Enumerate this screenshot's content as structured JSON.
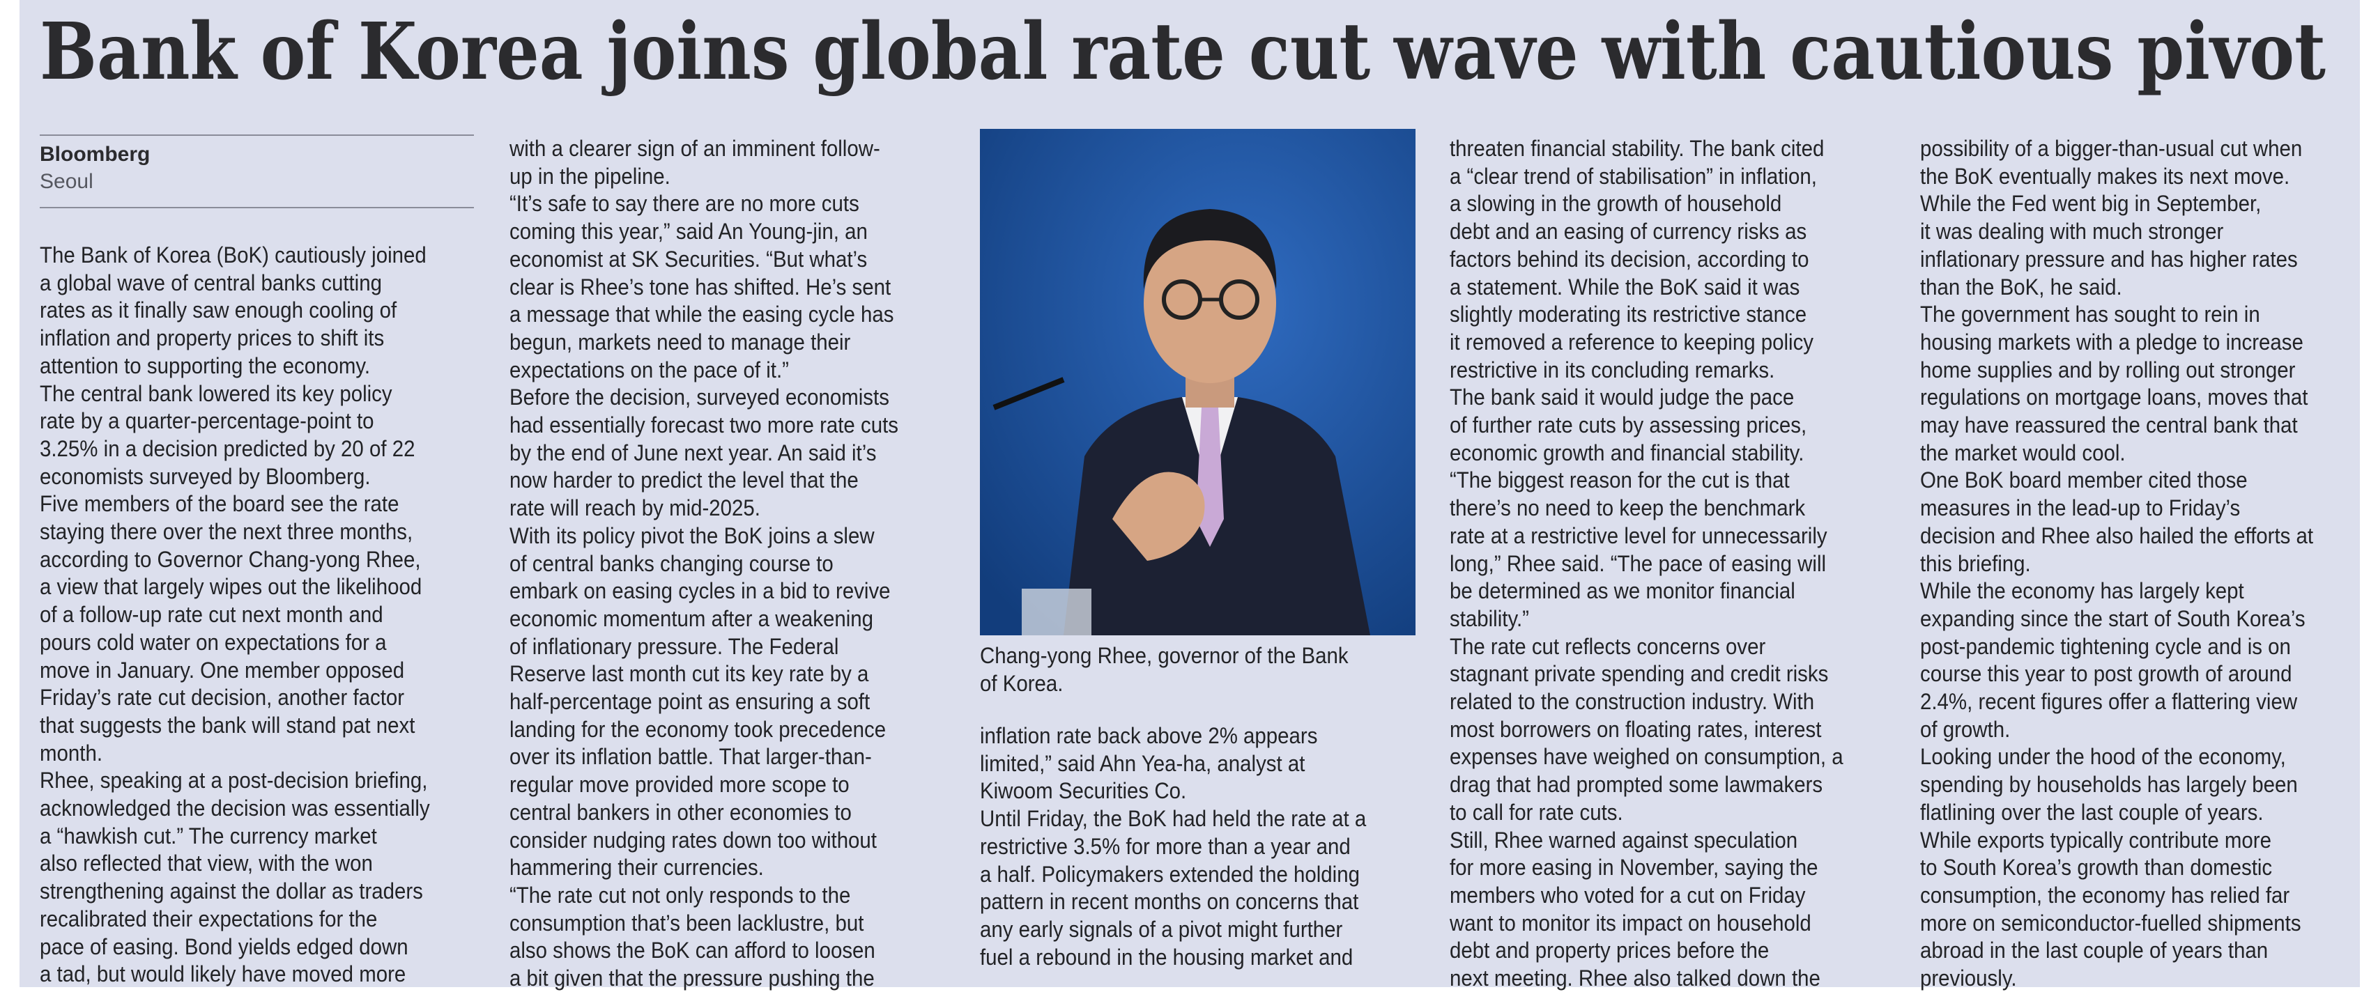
{
  "headline": "Bank of Korea joins global rate cut wave with cautious pivot",
  "byline": {
    "source": "Bloomberg",
    "location": "Seoul"
  },
  "columns": [
    {
      "lines": [
        "The Bank of Korea (BoK) cautiously joined",
        "a global wave of central banks cutting",
        "rates as it finally saw enough cooling of",
        "inflation and property prices to shift its",
        "attention to supporting the economy.",
        "The central bank lowered its key policy",
        "rate by a quarter-percentage-point to",
        "3.25% in a decision predicted by 20 of 22",
        "economists surveyed by Bloomberg.",
        "Five members of the board see the rate",
        "staying there over the next three months,",
        "according to Governor Chang-yong Rhee,",
        "a view that largely wipes out the likelihood",
        "of a follow-up rate cut next month and",
        "pours cold water on expectations for a",
        "move in January. One member opposed",
        "Friday’s rate cut decision, another factor",
        "that suggests the bank will stand pat next",
        "month.",
        "Rhee, speaking at a post-decision briefing,",
        "acknowledged the decision was essentially",
        "a “hawkish cut.” The currency market",
        "also reflected that view, with the won",
        "strengthening against the dollar as traders",
        "recalibrated their expectations for the",
        "pace of easing. Bond yields edged down",
        "a tad, but would likely have moved more"
      ]
    },
    {
      "lines": [
        "with a clearer sign of an imminent follow-",
        "up in the pipeline.",
        "“It’s safe to say there are no more cuts",
        "coming this year,” said An Young-jin, an",
        "economist at SK Securities. “But what’s",
        "clear is Rhee’s tone has shifted. He’s sent",
        "a message that while the easing cycle has",
        "begun, markets need to manage their",
        "expectations on the pace of it.”",
        "Before the decision, surveyed economists",
        "had essentially forecast two more rate cuts",
        "by the end of June next year. An said it’s",
        "now harder to predict the level that the",
        "rate will reach by mid-2025.",
        "With its policy pivot the BoK joins a slew",
        "of central banks changing course to",
        "embark on easing cycles in a bid to revive",
        "economic momentum after a weakening",
        "of inflationary pressure. The Federal",
        "Reserve last month cut its key rate by a",
        "half-percentage point as ensuring a soft",
        "landing for the economy took precedence",
        "over its inflation battle. That larger-than-",
        "regular move provided more scope to",
        "central bankers in other economies to",
        "consider nudging rates down too without",
        "hammering their currencies.",
        "“The rate cut not only responds to the",
        "consumption that’s been lacklustre, but",
        "also shows the BoK can afford to loosen",
        "a bit given that the pressure pushing the"
      ]
    },
    {
      "lines": [
        "inflation rate back above 2% appears",
        "limited,” said Ahn Yea-ha, analyst at",
        "Kiwoom Securities Co.",
        "Until Friday, the BoK had held the rate at a",
        "restrictive 3.5% for more than a year and",
        "a half. Policymakers extended the holding",
        "pattern in recent months on concerns that",
        "any early signals of a pivot might further",
        "fuel a rebound in the housing market and"
      ]
    },
    {
      "lines": [
        "threaten financial stability. The bank cited",
        "a “clear trend of stabilisation” in inflation,",
        "a slowing in the growth of household",
        "debt and an easing of currency risks as",
        "factors behind its decision, according to",
        "a statement. While the BoK said it was",
        "slightly moderating its restrictive stance",
        "it removed a reference to keeping policy",
        "restrictive in its concluding remarks.",
        "The bank said it would judge the pace",
        "of further rate cuts by assessing prices,",
        "economic growth and financial stability.",
        "“The biggest reason for the cut is that",
        "there’s no need to keep the benchmark",
        "rate at a restrictive level for unnecessarily",
        "long,” Rhee said. “The pace of easing will",
        "be determined as we monitor financial",
        "stability.”",
        "The rate cut reflects concerns over",
        "stagnant private spending and credit risks",
        "related to the construction industry. With",
        "most borrowers on floating rates, interest",
        "expenses have weighed on consumption, a",
        "drag that had prompted some lawmakers",
        "to call for rate cuts.",
        "Still, Rhee warned against speculation",
        "for more easing in November, saying the",
        "members who voted for a cut on Friday",
        "want to monitor its impact on household",
        "debt and property prices before the",
        "next meeting. Rhee also talked down the"
      ]
    },
    {
      "lines": [
        "possibility of a bigger-than-usual cut when",
        "the BoK eventually makes its next move.",
        "While the Fed went big in September,",
        "it was dealing with much stronger",
        "inflationary pressure and has higher rates",
        "than the BoK, he said.",
        "The government has sought to rein in",
        "housing markets with a pledge to increase",
        "home supplies and by rolling out stronger",
        "regulations on mortgage loans, moves that",
        "may have reassured the central bank that",
        "the market would cool.",
        "One BoK board member cited those",
        "measures in the lead-up to Friday’s",
        "decision and Rhee also hailed the efforts at",
        "this briefing.",
        "While the economy has largely kept",
        "expanding since the start of South Korea’s",
        "post-pandemic tightening cycle and is on",
        "course this year to post growth of around",
        "2.4%, recent figures offer a flattering view",
        "of growth.",
        "Looking under the hood of the economy,",
        "spending by households has largely been",
        "flatlining over the last couple of years.",
        "While exports typically contribute more",
        "to South Korea’s growth than domestic",
        "consumption, the economy has relied far",
        "more on semiconductor-fuelled shipments",
        "abroad in the last couple of years than",
        "previously."
      ]
    }
  ],
  "photo": {
    "caption": {
      "lines": [
        "Chang-yong Rhee, governor of the Bank",
        "of Korea."
      ]
    }
  }
}
